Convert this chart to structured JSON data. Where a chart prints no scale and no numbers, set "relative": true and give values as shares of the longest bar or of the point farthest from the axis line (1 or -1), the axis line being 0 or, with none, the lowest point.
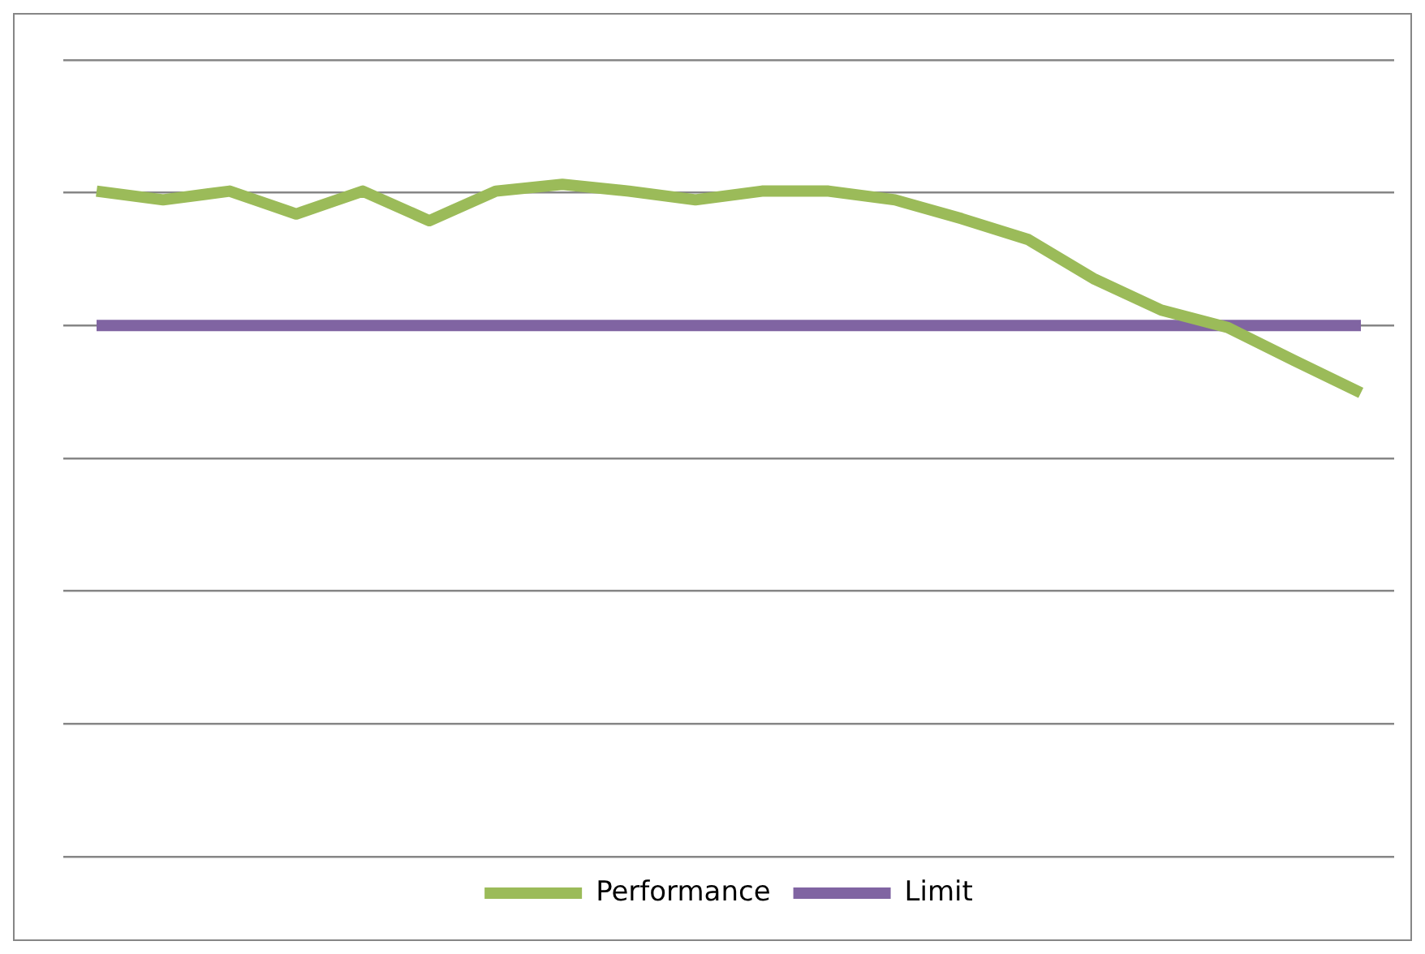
{
  "chart_data": {
    "type": "line",
    "relative": true,
    "categories": [
      null,
      null,
      null,
      null,
      null,
      null,
      null,
      null,
      null,
      null,
      null,
      null,
      null,
      null,
      null,
      null,
      null,
      null,
      null,
      null
    ],
    "series": [
      {
        "name": "Performance",
        "color": "#9bbb59",
        "values": [
          0.99,
          0.977,
          0.99,
          0.956,
          0.99,
          0.946,
          0.99,
          1,
          0.99,
          0.977,
          0.99,
          0.99,
          0.977,
          0.949,
          0.918,
          0.859,
          0.813,
          0.787,
          0.738,
          0.69
        ]
      },
      {
        "name": "Limit",
        "color": "#8064a2",
        "values": [
          0.79,
          0.79,
          0.79,
          0.79,
          0.79,
          0.79,
          0.79,
          0.79,
          0.79,
          0.79,
          0.79,
          0.79,
          0.79,
          0.79,
          0.79,
          0.79,
          0.79,
          0.79,
          0.79,
          0.79
        ]
      }
    ],
    "grid": "y",
    "legend": "bottom",
    "marker": "none",
    "line_style": "solid"
  }
}
